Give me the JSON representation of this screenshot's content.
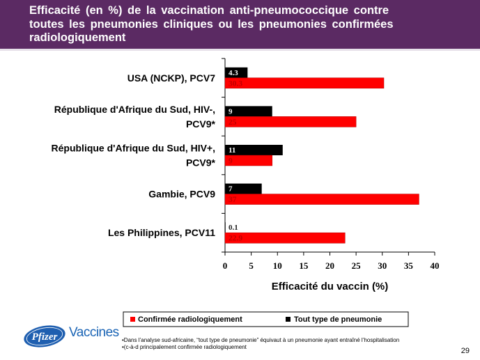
{
  "header": {
    "title": "Efficacité (en %) de la vaccination anti-pneumococcique contre\ntoutes les pneumonies cliniques ou les pneumonies confirmées\nradiologiquement"
  },
  "chart_data": {
    "type": "bar",
    "orientation": "horizontal",
    "categories": [
      "USA (NCKP), PCV7",
      "République d'Afrique du Sud, HIV-,\nPCV9*",
      "République d'Afrique du Sud, HIV+,\nPCV9*",
      "Gambie, PCV9",
      "Les Philippines, PCV11"
    ],
    "series": [
      {
        "name": "Tout type de pneumonie",
        "color": "#000000",
        "values": [
          4.3,
          9,
          11,
          7,
          0.1
        ],
        "labels": [
          "4.3",
          "9",
          "11",
          "7",
          "0.1"
        ]
      },
      {
        "name": "Confirmée radiologiquement",
        "color": "#ff0000",
        "values": [
          30.3,
          25,
          9,
          37,
          22.9
        ],
        "labels": [
          "30.3",
          "25",
          "9",
          "37",
          "22.9"
        ]
      }
    ],
    "xlabel": "Efficacité du vaccin (%)",
    "xlim": [
      0,
      40
    ],
    "xticks": [
      0,
      5,
      10,
      15,
      20,
      25,
      30,
      35,
      40
    ],
    "grid": false,
    "legend_position": "bottom"
  },
  "footer": {
    "brand": "Vaccines",
    "logo_text": "Pfizer",
    "footnote1": "•Dans l’analyse sud-africaine, “tout type de pneumonie” équivaut à un pneumonie ayant entraîné l’hospitalisation",
    "footnote2": "•(c-à-d principalement confirmée radiologiquement",
    "page_number": "29"
  }
}
